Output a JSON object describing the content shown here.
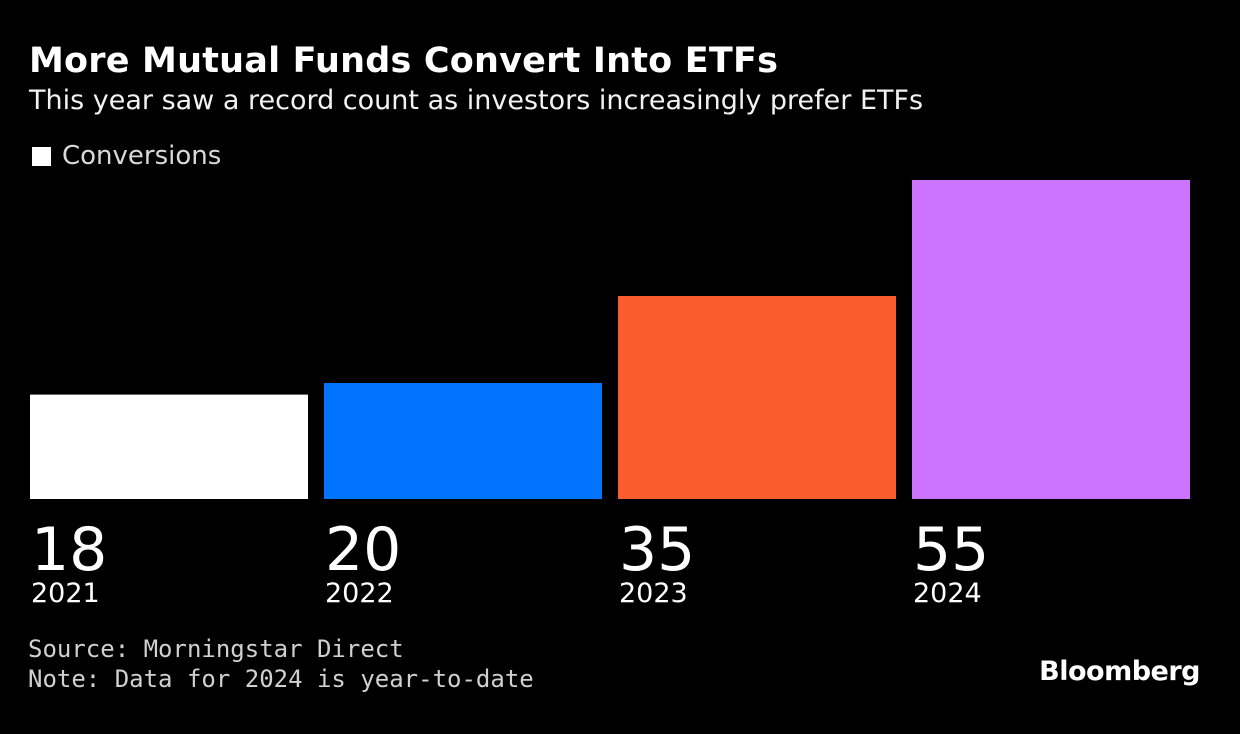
{
  "header": {
    "title": "More Mutual Funds Convert Into ETFs",
    "subtitle": "This year saw a record count as investors increasingly prefer ETFs"
  },
  "legend": {
    "label": "Conversions",
    "swatch_color": "#ffffff"
  },
  "chart_data": {
    "type": "bar",
    "title": "More Mutual Funds Convert Into ETFs",
    "subtitle": "This year saw a record count as investors increasingly prefer ETFs",
    "categories": [
      "2021",
      "2022",
      "2023",
      "2024"
    ],
    "series": [
      {
        "name": "Conversions",
        "values": [
          18,
          20,
          35,
          55
        ]
      }
    ],
    "value_labels": [
      "18",
      "20",
      "35",
      "55"
    ],
    "bar_colors": [
      "#ffffff",
      "#0073ff",
      "#fa5c2d",
      "#cc74ff"
    ],
    "ylim": [
      0,
      55
    ],
    "grid": false,
    "legend_position": "top-left",
    "xlabel": "",
    "ylabel": ""
  },
  "footer": {
    "source": "Source: Morningstar Direct",
    "note": "Note: Data for 2024 is year-to-date",
    "logo": "Bloomberg"
  }
}
